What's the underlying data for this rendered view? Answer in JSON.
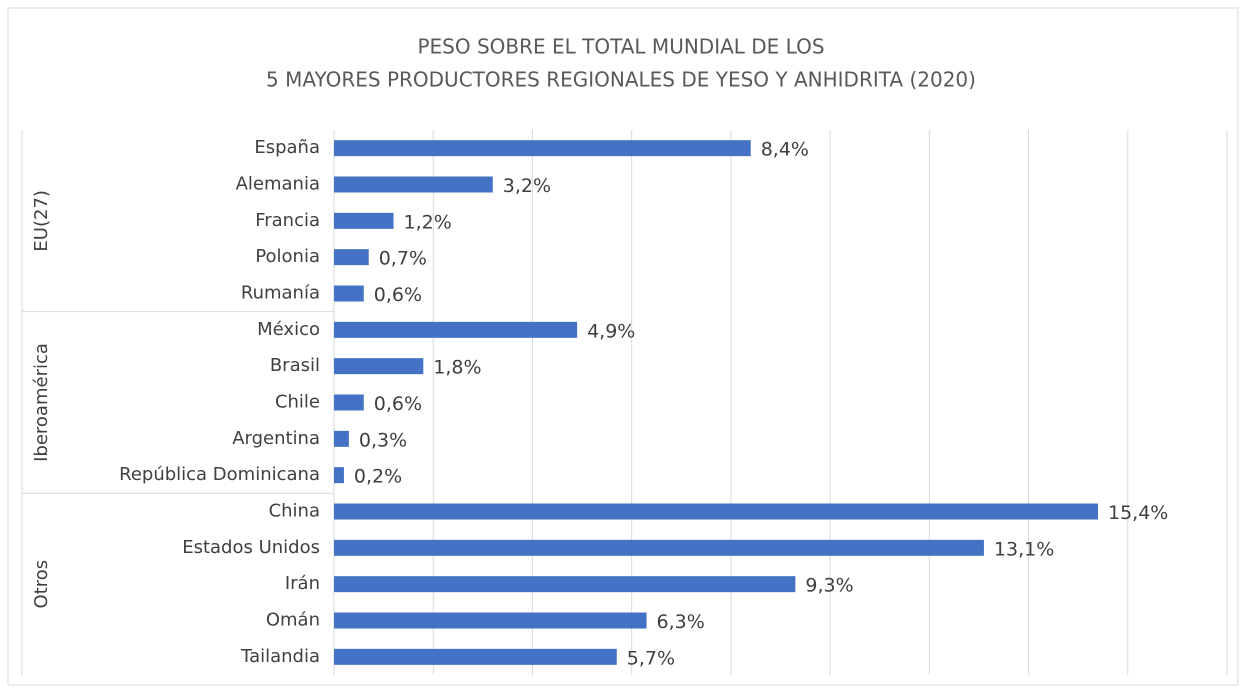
{
  "chart_data": {
    "type": "bar",
    "orientation": "horizontal",
    "title": [
      "PESO SOBRE EL TOTAL MUNDIAL DE LOS",
      "5 MAYORES PRODUCTORES REGIONALES DE YESO Y ANHIDRITA (2020)"
    ],
    "color": "#4472c4",
    "xlim": [
      0,
      18
    ],
    "xticks": [
      0,
      2,
      4,
      6,
      8,
      10,
      12,
      14,
      16,
      18
    ],
    "grid": true,
    "groups": [
      {
        "name": "EU(27)",
        "categories": [
          "España",
          "Alemania",
          "Francia",
          "Polonia",
          "Rumanía"
        ],
        "values": [
          8.4,
          3.2,
          1.2,
          0.7,
          0.6
        ],
        "value_labels": [
          "8,4%",
          "3,2%",
          "1,2%",
          "0,7%",
          "0,6%"
        ]
      },
      {
        "name": "Iberoamérica",
        "categories": [
          "México",
          "Brasil",
          "Chile",
          "Argentina",
          "República Dominicana"
        ],
        "values": [
          4.9,
          1.8,
          0.6,
          0.3,
          0.2
        ],
        "value_labels": [
          "4,9%",
          "1,8%",
          "0,6%",
          "0,3%",
          "0,2%"
        ]
      },
      {
        "name": "Otros",
        "categories": [
          "China",
          "Estados Unidos",
          "Irán",
          "Omán",
          "Tailandia"
        ],
        "values": [
          15.4,
          13.1,
          9.3,
          6.3,
          5.7
        ],
        "value_labels": [
          "15,4%",
          "13,1%",
          "9,3%",
          "6,3%",
          "5,7%"
        ]
      }
    ]
  }
}
